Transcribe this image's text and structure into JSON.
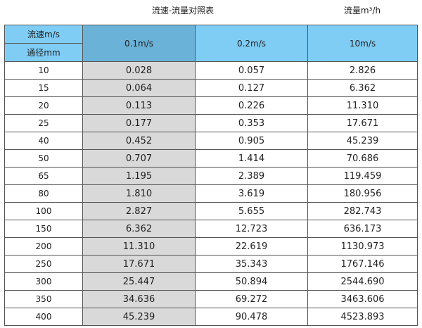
{
  "title": "流速-流量对照表",
  "unit_label": "流量m³/h",
  "header": {
    "speed_label": "流速m/s",
    "diameter_label": "通径mm",
    "columns": [
      "0.1m/s",
      "0.2m/s",
      "10m/s"
    ]
  },
  "colors": {
    "header": "#7fcdf5",
    "header_selected": "#6bb2d8",
    "shaded_column": "#d9d9d9"
  },
  "rows": [
    [
      "10",
      "0.028",
      "0.057",
      "2.826"
    ],
    [
      "15",
      "0.064",
      "0.127",
      "6.362"
    ],
    [
      "20",
      "0.113",
      "0.226",
      "11.310"
    ],
    [
      "25",
      "0.177",
      "0.353",
      "17.671"
    ],
    [
      "40",
      "0.452",
      "0.905",
      "45.239"
    ],
    [
      "50",
      "0.707",
      "1.414",
      "70.686"
    ],
    [
      "65",
      "1.195",
      "2.389",
      "119.459"
    ],
    [
      "80",
      "1.810",
      "3.619",
      "180.956"
    ],
    [
      "100",
      "2.827",
      "5.655",
      "282.743"
    ],
    [
      "150",
      "6.362",
      "12.723",
      "636.173"
    ],
    [
      "200",
      "11.310",
      "22.619",
      "1130.973"
    ],
    [
      "250",
      "17.671",
      "35.343",
      "1767.146"
    ],
    [
      "300",
      "25.447",
      "50.894",
      "2544.690"
    ],
    [
      "350",
      "34.636",
      "69.272",
      "3463.606"
    ],
    [
      "400",
      "45.239",
      "90.478",
      "4523.893"
    ]
  ]
}
